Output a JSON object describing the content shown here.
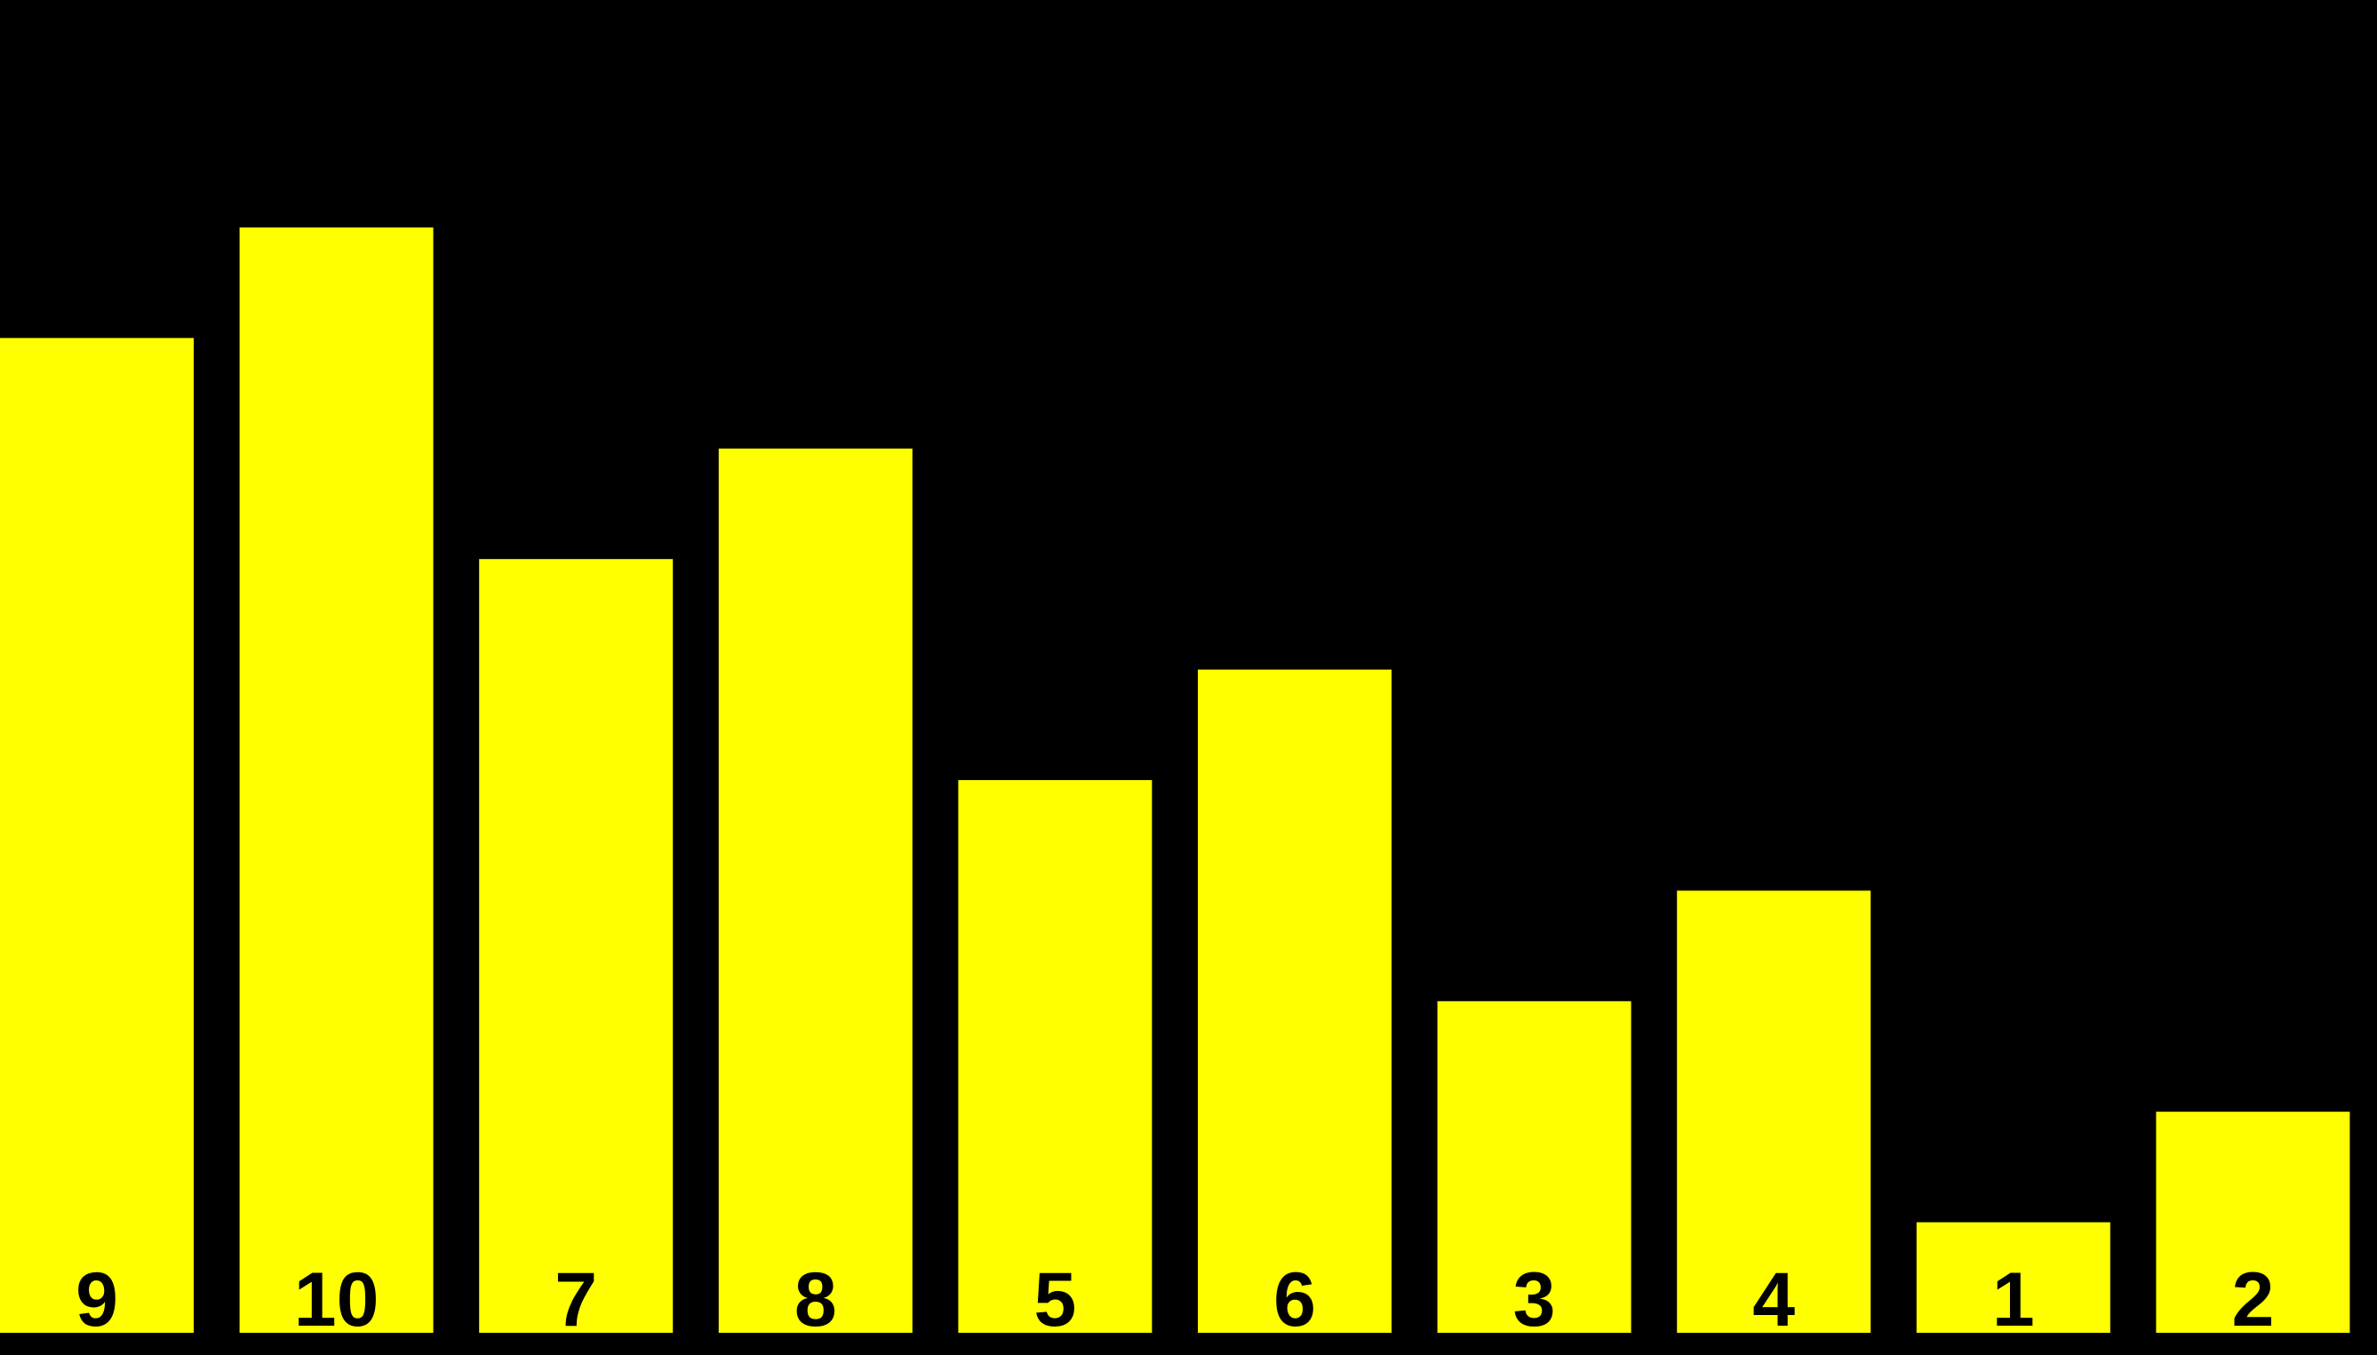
{
  "chart_data": {
    "type": "bar",
    "categories": [
      "9",
      "10",
      "7",
      "8",
      "5",
      "6",
      "3",
      "4",
      "1",
      "2"
    ],
    "values": [
      9,
      10,
      7,
      8,
      5,
      6,
      3,
      4,
      1,
      2
    ],
    "title": "",
    "xlabel": "",
    "ylabel": "",
    "ylim": [
      0,
      12
    ],
    "grid": false,
    "legend": "none",
    "bar_color": "#FFFF00",
    "background_color": "#000000",
    "label_color": "#000000"
  }
}
